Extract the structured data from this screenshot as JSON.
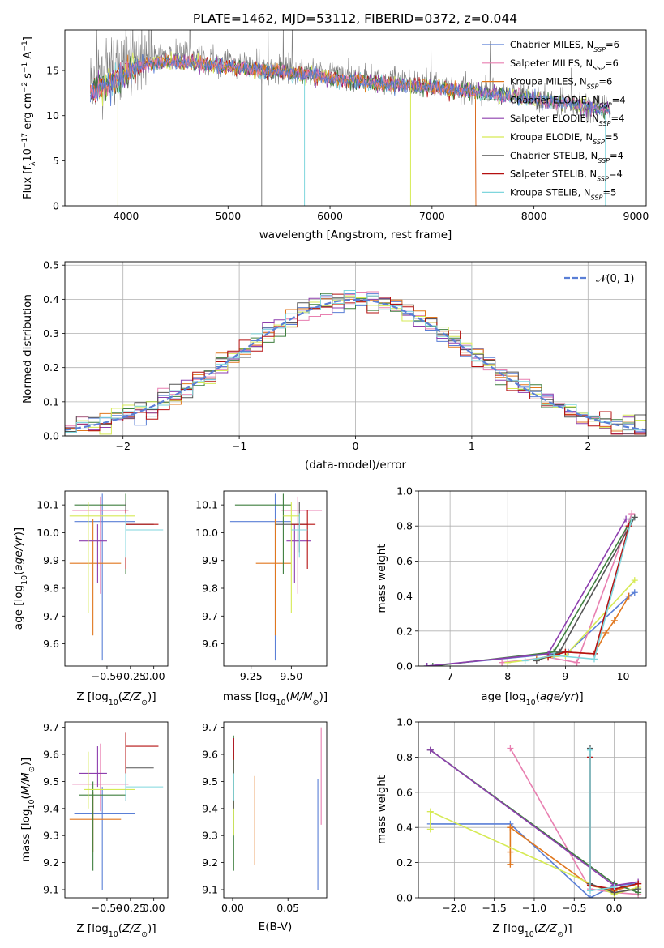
{
  "title": "PLATE=1462, MJD=53112, FIBERID=0372, z=0.044",
  "colors": {
    "Chabrier MILES": "#5a7fd6",
    "Salpeter MILES": "#e87fb0",
    "Kroupa MILES": "#e0771e",
    "Chabrier ELODIE": "#3f7f3f",
    "Salpeter ELODIE": "#8d3fae",
    "Kroupa ELODIE": "#d6ea55",
    "Chabrier STELIB": "#555555",
    "Salpeter STELIB": "#b51010",
    "Kroupa STELIB": "#7fd6dd"
  },
  "chart_data": [
    {
      "id": "spectrum",
      "type": "line",
      "xlabel": "wavelength [Angstrom, rest frame]",
      "ylabel": "Flux [f_λ 10^-17 erg cm^-2 s^-1 A^-1]",
      "xlim": [
        3400,
        9100
      ],
      "ylim": [
        0,
        19.5
      ],
      "xticks": [
        4000,
        5000,
        6000,
        7000,
        8000,
        9000
      ],
      "yticks": [
        0,
        5,
        10,
        15
      ],
      "legend": {
        "position": "top-right",
        "entries": [
          {
            "label": "Chabrier MILES",
            "nssp": "6"
          },
          {
            "label": "Salpeter MILES",
            "nssp": "6"
          },
          {
            "label": "Kroupa MILES",
            "nssp": "6"
          },
          {
            "label": "Chabrier ELODIE",
            "nssp": "4"
          },
          {
            "label": "Salpeter ELODIE",
            "nssp": "4"
          },
          {
            "label": "Kroupa ELODIE",
            "nssp": "5"
          },
          {
            "label": "Chabrier STELIB",
            "nssp": "4"
          },
          {
            "label": "Salpeter STELIB",
            "nssp": "4"
          },
          {
            "label": "Kroupa STELIB",
            "nssp": "5"
          }
        ]
      },
      "data_series": {
        "name": "data",
        "x": [
          3650,
          3800,
          3950,
          4100,
          4300,
          4500,
          4700,
          4900,
          5100,
          5300,
          5500,
          5700,
          5900,
          6100,
          6300,
          6500,
          6700,
          6900,
          7100,
          7300,
          7500,
          7700,
          7900,
          8100,
          8300,
          8500,
          8750
        ],
        "y": [
          13.5,
          14.5,
          15.5,
          16.2,
          16.5,
          16.6,
          16.4,
          16.0,
          15.8,
          15.5,
          15.4,
          15.0,
          14.8,
          14.4,
          14.1,
          14.0,
          13.8,
          13.5,
          13.3,
          13.0,
          12.8,
          12.4,
          12.2,
          11.8,
          11.5,
          11.0,
          10.6
        ]
      },
      "model_series": {
        "x": [
          3650,
          3800,
          3950,
          4100,
          4300,
          4500,
          4700,
          4900,
          5100,
          5300,
          5500,
          5700,
          5900,
          6100,
          6300,
          6500,
          6700,
          6900,
          7100,
          7300,
          7500,
          7700,
          7900,
          8100,
          8300,
          8500,
          8750
        ],
        "y": [
          12.5,
          13.5,
          14.5,
          15.5,
          15.8,
          16.0,
          15.8,
          15.5,
          15.3,
          15.0,
          14.9,
          14.6,
          14.4,
          14.0,
          13.8,
          13.6,
          13.4,
          13.2,
          13.0,
          12.8,
          12.6,
          12.3,
          12.0,
          11.7,
          11.4,
          11.0,
          10.6
        ]
      },
      "model_cutoffs": {
        "Salpeter STELIB": 7430,
        "Kroupa MILES": 7430,
        "Kroupa STELIB": 8700
      }
    },
    {
      "id": "residuals",
      "type": "step",
      "xlabel": "(data-model)/error",
      "ylabel": "Normed distribution",
      "xlim": [
        -2.5,
        2.5
      ],
      "ylim": [
        0,
        0.51
      ],
      "xticks": [
        -2,
        -1,
        0,
        1,
        2
      ],
      "yticks": [
        0.0,
        0.1,
        0.2,
        0.3,
        0.4,
        0.5
      ],
      "grid": true,
      "legend": {
        "position": "top-right",
        "entries": [
          {
            "label": "𝒩(0, 1)"
          }
        ]
      },
      "bin_width": 0.1,
      "reference_curve": {
        "name": "𝒩(0, 1)",
        "mu": 0,
        "sigma": 1,
        "color": "#5a7fd6"
      }
    },
    {
      "id": "z-age",
      "type": "errorbar",
      "xlabel": "Z [log10(Z/Z⊙)]",
      "ylabel": "age  [log10(age/yr)]",
      "xlim": [
        -0.95,
        0.15
      ],
      "ylim": [
        9.52,
        10.15
      ],
      "xticks": [
        -0.5,
        -0.25,
        0.0
      ],
      "yticks": [
        9.6,
        9.7,
        9.8,
        9.9,
        10.0,
        10.1
      ],
      "points": [
        {
          "name": "Chabrier MILES",
          "x": -0.55,
          "xerr": [
            0.3,
            0.35
          ],
          "y": 10.04,
          "yerr": [
            0.5,
            0.1
          ]
        },
        {
          "name": "Salpeter MILES",
          "x": -0.57,
          "xerr": [
            0.3,
            0.3
          ],
          "y": 10.08,
          "yerr": [
            0.3,
            0.05
          ]
        },
        {
          "name": "Kroupa MILES",
          "x": -0.65,
          "xerr": [
            0.25,
            0.3
          ],
          "y": 9.89,
          "yerr": [
            0.26,
            0.16
          ]
        },
        {
          "name": "Chabrier ELODIE",
          "x": -0.3,
          "xerr": [
            0.55,
            0.0
          ],
          "y": 10.1,
          "yerr": [
            0.25,
            0.04
          ]
        },
        {
          "name": "Salpeter ELODIE",
          "x": -0.6,
          "xerr": [
            0.2,
            0.1
          ],
          "y": 9.97,
          "yerr": [
            0.15,
            0.06
          ]
        },
        {
          "name": "Kroupa ELODIE",
          "x": -0.7,
          "xerr": [
            0.2,
            0.5
          ],
          "y": 10.06,
          "yerr": [
            0.35,
            0.05
          ]
        },
        {
          "name": "Chabrier STELIB",
          "x": -0.3,
          "xerr": [
            0.0,
            0.3
          ],
          "y": 10.03,
          "yerr": [
            0.1,
            0.08
          ]
        },
        {
          "name": "Salpeter STELIB",
          "x": -0.3,
          "xerr": [
            0.0,
            0.35
          ],
          "y": 10.03,
          "yerr": [
            0.16,
            0.05
          ]
        },
        {
          "name": "Kroupa STELIB",
          "x": -0.3,
          "xerr": [
            0.0,
            0.4
          ],
          "y": 10.01,
          "yerr": [
            0.1,
            0.06
          ]
        }
      ]
    },
    {
      "id": "mass-age",
      "type": "errorbar",
      "xlabel": "mass [log10(M/M⊙)]",
      "ylabel": "",
      "xlim": [
        9.08,
        9.72
      ],
      "ylim": [
        9.52,
        10.15
      ],
      "xticks": [
        9.25,
        9.5
      ],
      "yticks": [
        9.6,
        9.7,
        9.8,
        9.9,
        10.0,
        10.1
      ],
      "points": [
        {
          "name": "Chabrier MILES",
          "x": 9.4,
          "xerr": [
            0.28,
            0.1
          ],
          "y": 10.04,
          "yerr": [
            0.5,
            0.1
          ]
        },
        {
          "name": "Salpeter MILES",
          "x": 9.54,
          "xerr": [
            0.1,
            0.15
          ],
          "y": 10.08,
          "yerr": [
            0.3,
            0.05
          ]
        },
        {
          "name": "Kroupa MILES",
          "x": 9.4,
          "xerr": [
            0.12,
            0.1
          ],
          "y": 9.89,
          "yerr": [
            0.26,
            0.16
          ]
        },
        {
          "name": "Chabrier ELODIE",
          "x": 9.45,
          "xerr": [
            0.3,
            0.05
          ],
          "y": 10.1,
          "yerr": [
            0.25,
            0.04
          ]
        },
        {
          "name": "Salpeter ELODIE",
          "x": 9.52,
          "xerr": [
            0.05,
            0.1
          ],
          "y": 9.97,
          "yerr": [
            0.15,
            0.06
          ]
        },
        {
          "name": "Kroupa ELODIE",
          "x": 9.5,
          "xerr": [
            0.05,
            0.05
          ],
          "y": 10.06,
          "yerr": [
            0.35,
            0.05
          ]
        },
        {
          "name": "Chabrier STELIB",
          "x": 9.55,
          "xerr": [
            0.15,
            0.05
          ],
          "y": 10.03,
          "yerr": [
            0.1,
            0.08
          ]
        },
        {
          "name": "Salpeter STELIB",
          "x": 9.6,
          "xerr": [
            0.1,
            0.05
          ],
          "y": 10.03,
          "yerr": [
            0.16,
            0.05
          ]
        },
        {
          "name": "Kroupa STELIB",
          "x": 9.55,
          "xerr": [
            0.05,
            0.05
          ],
          "y": 10.01,
          "yerr": [
            0.1,
            0.06
          ]
        }
      ]
    },
    {
      "id": "age-weight",
      "type": "line",
      "xlabel": "age  [log10(age/yr)]",
      "ylabel": "mass weight",
      "xlim": [
        6.45,
        10.4
      ],
      "ylim": [
        0,
        1.0
      ],
      "xticks": [
        7,
        8,
        9,
        10
      ],
      "yticks": [
        0.0,
        0.2,
        0.4,
        0.6,
        0.8,
        1.0
      ],
      "grid": true,
      "series": [
        {
          "name": "Chabrier MILES",
          "x": [
            6.6,
            8.8,
            9.05,
            10.1,
            10.2
          ],
          "y": [
            0.0,
            0.07,
            0.08,
            0.4,
            0.42
          ]
        },
        {
          "name": "Salpeter MILES",
          "x": [
            7.9,
            8.7,
            9.2,
            10.15
          ],
          "y": [
            0.02,
            0.05,
            0.02,
            0.87
          ]
        },
        {
          "name": "Kroupa MILES",
          "x": [
            8.5,
            9.0,
            9.5,
            9.7,
            9.85,
            10.1
          ],
          "y": [
            0.04,
            0.08,
            0.07,
            0.19,
            0.26,
            0.4
          ]
        },
        {
          "name": "Chabrier ELODIE",
          "x": [
            6.7,
            8.8,
            10.15
          ],
          "y": [
            0.0,
            0.08,
            0.84
          ]
        },
        {
          "name": "Salpeter ELODIE",
          "x": [
            6.6,
            8.7,
            10.05
          ],
          "y": [
            0.0,
            0.07,
            0.84
          ]
        },
        {
          "name": "Kroupa ELODIE",
          "x": [
            8.0,
            9.0,
            10.2
          ],
          "y": [
            0.02,
            0.06,
            0.49
          ]
        },
        {
          "name": "Chabrier STELIB",
          "x": [
            8.5,
            8.9,
            10.2
          ],
          "y": [
            0.03,
            0.08,
            0.85
          ]
        },
        {
          "name": "Salpeter STELIB",
          "x": [
            8.7,
            9.0,
            9.5,
            10.1
          ],
          "y": [
            0.05,
            0.08,
            0.07,
            0.8
          ]
        },
        {
          "name": "Kroupa STELIB",
          "x": [
            8.3,
            8.8,
            9.5,
            10.15
          ],
          "y": [
            0.03,
            0.06,
            0.04,
            0.84
          ]
        }
      ]
    },
    {
      "id": "z-mass",
      "type": "errorbar",
      "xlabel": "Z [log10(Z/Z⊙)]",
      "ylabel": "mass [log10(M/M⊙)]",
      "xlim": [
        -0.95,
        0.15
      ],
      "ylim": [
        9.07,
        9.72
      ],
      "xticks": [
        -0.5,
        -0.25,
        0.0
      ],
      "yticks": [
        9.1,
        9.2,
        9.3,
        9.4,
        9.5,
        9.6,
        9.7
      ],
      "points": [
        {
          "name": "Chabrier MILES",
          "x": -0.55,
          "xerr": [
            0.3,
            0.35
          ],
          "y": 9.38,
          "yerr": [
            0.28,
            0.1
          ]
        },
        {
          "name": "Salpeter MILES",
          "x": -0.57,
          "xerr": [
            0.3,
            0.3
          ],
          "y": 9.49,
          "yerr": [
            0.1,
            0.15
          ]
        },
        {
          "name": "Kroupa MILES",
          "x": -0.65,
          "xerr": [
            0.25,
            0.3
          ],
          "y": 9.36,
          "yerr": [
            0.12,
            0.1
          ]
        },
        {
          "name": "Chabrier ELODIE",
          "x": -0.65,
          "xerr": [
            0.15,
            0.35
          ],
          "y": 9.45,
          "yerr": [
            0.28,
            0.05
          ]
        },
        {
          "name": "Salpeter ELODIE",
          "x": -0.6,
          "xerr": [
            0.2,
            0.1
          ],
          "y": 9.53,
          "yerr": [
            0.05,
            0.1
          ]
        },
        {
          "name": "Kroupa ELODIE",
          "x": -0.7,
          "xerr": [
            0.05,
            0.5
          ],
          "y": 9.47,
          "yerr": [
            0.07,
            0.14
          ]
        },
        {
          "name": "Chabrier STELIB",
          "x": -0.3,
          "xerr": [
            0.0,
            0.3
          ],
          "y": 9.55,
          "yerr": [
            0.1,
            0.05
          ]
        },
        {
          "name": "Salpeter STELIB",
          "x": -0.3,
          "xerr": [
            0.0,
            0.35
          ],
          "y": 9.63,
          "yerr": [
            0.2,
            0.05
          ]
        },
        {
          "name": "Kroupa STELIB",
          "x": -0.3,
          "xerr": [
            0.0,
            0.4
          ],
          "y": 9.48,
          "yerr": [
            0.05,
            0.05
          ]
        }
      ]
    },
    {
      "id": "ebv-mass",
      "type": "errorbar",
      "xlabel": "E(B-V)",
      "ylabel": "",
      "xlim": [
        -0.008,
        0.085
      ],
      "ylim": [
        9.07,
        9.72
      ],
      "xticks": [
        0.0,
        0.05
      ],
      "yticks": [
        9.1,
        9.2,
        9.3,
        9.4,
        9.5,
        9.6,
        9.7
      ],
      "points": [
        {
          "name": "Chabrier MILES",
          "x": 0.077,
          "y": 9.3,
          "yerr": [
            0.2,
            0.21
          ]
        },
        {
          "name": "Salpeter MILES",
          "x": 0.08,
          "y": 9.52,
          "yerr": [
            0.18,
            0.18
          ]
        },
        {
          "name": "Kroupa MILES",
          "x": 0.02,
          "y": 9.35,
          "yerr": [
            0.16,
            0.17
          ]
        },
        {
          "name": "Chabrier ELODIE",
          "x": 0.001,
          "y": 9.42,
          "yerr": [
            0.25,
            0.25
          ]
        },
        {
          "name": "Salpeter ELODIE",
          "x": 0.001,
          "y": 9.6,
          "yerr": [
            0.06,
            0.06
          ]
        },
        {
          "name": "Kroupa ELODIE",
          "x": 0.001,
          "y": 9.45,
          "yerr": [
            0.15,
            0.15
          ]
        },
        {
          "name": "Chabrier STELIB",
          "x": 0.001,
          "y": 9.5,
          "yerr": [
            0.1,
            0.1
          ]
        },
        {
          "name": "Salpeter STELIB",
          "x": 0.001,
          "y": 9.62,
          "yerr": [
            0.04,
            0.04
          ]
        },
        {
          "name": "Kroupa STELIB",
          "x": 0.001,
          "y": 9.48,
          "yerr": [
            0.05,
            0.05
          ]
        }
      ]
    },
    {
      "id": "z-weight",
      "type": "line",
      "xlabel": "Z [log10(Z/Z⊙)]",
      "ylabel": "mass weight",
      "xlim": [
        -2.45,
        0.4
      ],
      "ylim": [
        0,
        1.0
      ],
      "xticks": [
        -2.0,
        -1.5,
        -1.0,
        -0.5,
        0.0
      ],
      "yticks": [
        0.0,
        0.2,
        0.4,
        0.6,
        0.8,
        1.0
      ],
      "grid": true,
      "series": [
        {
          "name": "Chabrier MILES",
          "x": [
            -2.3,
            -1.3,
            -0.3,
            0.0,
            0.3
          ],
          "y": [
            0.42,
            0.42,
            0.0,
            0.07,
            0.08
          ]
        },
        {
          "name": "Salpeter MILES",
          "x": [
            -1.3,
            -0.3,
            0.0,
            0.3
          ],
          "y": [
            0.85,
            0.05,
            0.03,
            0.02
          ]
        },
        {
          "name": "Kroupa MILES",
          "x": [
            -1.3,
            -1.3,
            -1.3,
            -1.3,
            -0.3,
            0.0,
            0.3
          ],
          "y": [
            0.19,
            0.26,
            0.4,
            0.4,
            0.07,
            0.04,
            0.08
          ]
        },
        {
          "name": "Chabrier ELODIE",
          "x": [
            -2.3,
            0.0,
            0.3
          ],
          "y": [
            0.84,
            0.08,
            0.03
          ]
        },
        {
          "name": "Salpeter ELODIE",
          "x": [
            -2.3,
            0.0,
            0.3
          ],
          "y": [
            0.84,
            0.07,
            0.09
          ]
        },
        {
          "name": "Kroupa ELODIE",
          "x": [
            -2.3,
            -2.3,
            0.0,
            0.3
          ],
          "y": [
            0.39,
            0.49,
            0.02,
            0.06
          ]
        },
        {
          "name": "Chabrier STELIB",
          "x": [
            -0.3,
            -0.3,
            0.0,
            0.3
          ],
          "y": [
            0.85,
            0.08,
            0.03,
            0.05
          ]
        },
        {
          "name": "Salpeter STELIB",
          "x": [
            -0.3,
            -0.3,
            0.0,
            0.3
          ],
          "y": [
            0.8,
            0.07,
            0.05,
            0.08
          ]
        },
        {
          "name": "Kroupa STELIB",
          "x": [
            -0.3,
            -0.3,
            0.0
          ],
          "y": [
            0.84,
            0.04,
            0.06
          ]
        }
      ]
    }
  ]
}
